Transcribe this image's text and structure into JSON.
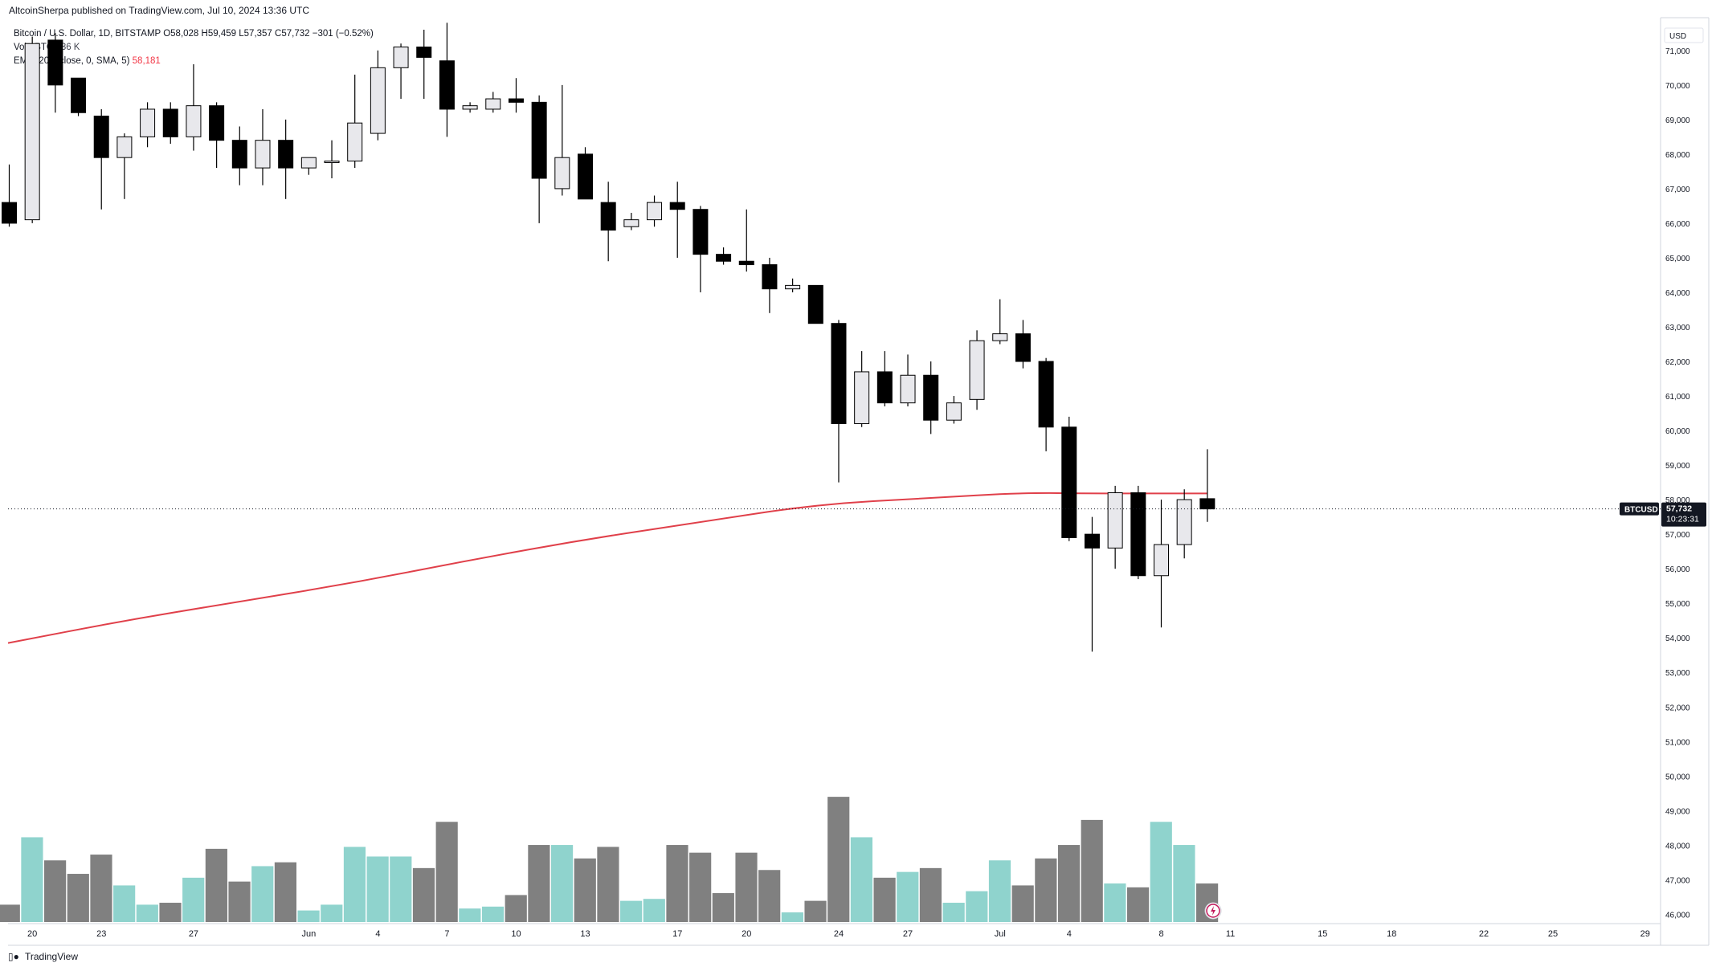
{
  "header": {
    "published": "AltcoinSherpa published on TradingView.com, Jul 10, 2024 13:36 UTC"
  },
  "legend": {
    "symbol_line": "Bitcoin / U.S. Dollar, 1D, BITSTAMP",
    "ohlc": {
      "o_label": "O",
      "o": "58,028",
      "h_label": "H",
      "h": "59,459",
      "l_label": "L",
      "l": "57,357",
      "c_label": "C",
      "c": "57,732",
      "change": "−301 (−0.52%)"
    },
    "volume_line": "Vol · BTC",
    "volume_value": "236 K",
    "ema_line": "EMA (200, close, 0, SMA, 5)",
    "ema_value": "58,181"
  },
  "price_scale": {
    "currency": "USD",
    "symbol_tag": "BTCUSD",
    "last_price": "57,732",
    "countdown": "10:23:31"
  },
  "footer": {
    "brand": "TradingView"
  },
  "colors": {
    "up_body": "#e8e8ec",
    "down_body": "#000000",
    "wick": "#000000",
    "vol_up": "#8fd3cd",
    "vol_down": "#808080",
    "ema": "#e0404a",
    "grid_axis": "#d1d4dc",
    "tag_bg": "#131722"
  },
  "chart_data": {
    "type": "candlestick",
    "symbol": "BTCUSD",
    "interval": "1D",
    "exchange": "BITSTAMP",
    "ylim": [
      45800,
      71600
    ],
    "y_ticks": [
      46000,
      47000,
      48000,
      49000,
      50000,
      51000,
      52000,
      53000,
      54000,
      55000,
      56000,
      57000,
      58000,
      59000,
      60000,
      61000,
      62000,
      63000,
      64000,
      65000,
      66000,
      67000,
      68000,
      69000,
      70000,
      71000
    ],
    "y_tick_labels": [
      "46,000",
      "47,000",
      "48,000",
      "49,000",
      "50,000",
      "51,000",
      "52,000",
      "53,000",
      "54,000",
      "55,000",
      "56,000",
      "57,000",
      "58,000",
      "59,000",
      "60,000",
      "61,000",
      "62,000",
      "63,000",
      "64,000",
      "65,000",
      "66,000",
      "67,000",
      "68,000",
      "69,000",
      "70,000",
      "71,000"
    ],
    "x_ticks": [
      {
        "label": "20",
        "i": 1
      },
      {
        "label": "23",
        "i": 4
      },
      {
        "label": "27",
        "i": 8
      },
      {
        "label": "Jun",
        "i": 13
      },
      {
        "label": "4",
        "i": 16
      },
      {
        "label": "7",
        "i": 19
      },
      {
        "label": "10",
        "i": 22
      },
      {
        "label": "13",
        "i": 25
      },
      {
        "label": "17",
        "i": 29
      },
      {
        "label": "20",
        "i": 32
      },
      {
        "label": "24",
        "i": 36
      },
      {
        "label": "27",
        "i": 39
      },
      {
        "label": "Jul",
        "i": 43
      },
      {
        "label": "4",
        "i": 46
      },
      {
        "label": "8",
        "i": 50
      },
      {
        "label": "11",
        "i": 53
      },
      {
        "label": "15",
        "i": 57
      },
      {
        "label": "18",
        "i": 60
      },
      {
        "label": "22",
        "i": 64
      },
      {
        "label": "25",
        "i": 67
      },
      {
        "label": "29",
        "i": 71
      }
    ],
    "candles": [
      {
        "o": 66600,
        "h": 67700,
        "l": 65900,
        "c": 66000
      },
      {
        "o": 66100,
        "h": 71400,
        "l": 66000,
        "c": 71200
      },
      {
        "o": 71300,
        "h": 71500,
        "l": 69200,
        "c": 70000
      },
      {
        "o": 70200,
        "h": 70200,
        "l": 69100,
        "c": 69200
      },
      {
        "o": 69100,
        "h": 69300,
        "l": 66400,
        "c": 67900
      },
      {
        "o": 67900,
        "h": 68600,
        "l": 66700,
        "c": 68500
      },
      {
        "o": 68500,
        "h": 69500,
        "l": 68200,
        "c": 69300
      },
      {
        "o": 69300,
        "h": 69500,
        "l": 68300,
        "c": 68500
      },
      {
        "o": 68500,
        "h": 70600,
        "l": 68100,
        "c": 69400
      },
      {
        "o": 69400,
        "h": 69500,
        "l": 67600,
        "c": 68400
      },
      {
        "o": 68400,
        "h": 68800,
        "l": 67100,
        "c": 67600
      },
      {
        "o": 67600,
        "h": 69300,
        "l": 67100,
        "c": 68400
      },
      {
        "o": 68400,
        "h": 69000,
        "l": 66700,
        "c": 67600
      },
      {
        "o": 67600,
        "h": 67800,
        "l": 67400,
        "c": 67900
      },
      {
        "o": 67800,
        "h": 68400,
        "l": 67300,
        "c": 67800
      },
      {
        "o": 67800,
        "h": 70300,
        "l": 67600,
        "c": 68900
      },
      {
        "o": 68600,
        "h": 71000,
        "l": 68400,
        "c": 70500
      },
      {
        "o": 70500,
        "h": 71200,
        "l": 69600,
        "c": 71100
      },
      {
        "o": 71100,
        "h": 71600,
        "l": 69600,
        "c": 70800
      },
      {
        "o": 70700,
        "h": 71800,
        "l": 68500,
        "c": 69300
      },
      {
        "o": 69300,
        "h": 69500,
        "l": 69200,
        "c": 69400
      },
      {
        "o": 69300,
        "h": 69800,
        "l": 69200,
        "c": 69600
      },
      {
        "o": 69600,
        "h": 70200,
        "l": 69200,
        "c": 69500
      },
      {
        "o": 69500,
        "h": 69700,
        "l": 66000,
        "c": 67300
      },
      {
        "o": 67000,
        "h": 70000,
        "l": 66800,
        "c": 67900
      },
      {
        "o": 68000,
        "h": 68200,
        "l": 66700,
        "c": 66700
      },
      {
        "o": 66600,
        "h": 67200,
        "l": 64900,
        "c": 65800
      },
      {
        "o": 65900,
        "h": 66300,
        "l": 65800,
        "c": 66100
      },
      {
        "o": 66100,
        "h": 66800,
        "l": 65900,
        "c": 66600
      },
      {
        "o": 66600,
        "h": 67200,
        "l": 65000,
        "c": 66400
      },
      {
        "o": 66400,
        "h": 66500,
        "l": 64000,
        "c": 65100
      },
      {
        "o": 65100,
        "h": 65300,
        "l": 64800,
        "c": 64900
      },
      {
        "o": 64900,
        "h": 66400,
        "l": 64600,
        "c": 64800
      },
      {
        "o": 64800,
        "h": 65000,
        "l": 63400,
        "c": 64100
      },
      {
        "o": 64100,
        "h": 64400,
        "l": 64000,
        "c": 64200
      },
      {
        "o": 64200,
        "h": 64200,
        "l": 63100,
        "c": 63100
      },
      {
        "o": 63100,
        "h": 63200,
        "l": 58500,
        "c": 60200
      },
      {
        "o": 60200,
        "h": 62300,
        "l": 60100,
        "c": 61700
      },
      {
        "o": 61700,
        "h": 62300,
        "l": 60700,
        "c": 60800
      },
      {
        "o": 60800,
        "h": 62200,
        "l": 60700,
        "c": 61600
      },
      {
        "o": 61600,
        "h": 62000,
        "l": 59900,
        "c": 60300
      },
      {
        "o": 60300,
        "h": 61000,
        "l": 60200,
        "c": 60800
      },
      {
        "o": 60900,
        "h": 62900,
        "l": 60600,
        "c": 62600
      },
      {
        "o": 62600,
        "h": 63800,
        "l": 62500,
        "c": 62800
      },
      {
        "o": 62800,
        "h": 63200,
        "l": 61800,
        "c": 62000
      },
      {
        "o": 62000,
        "h": 62100,
        "l": 59400,
        "c": 60100
      },
      {
        "o": 60100,
        "h": 60400,
        "l": 56800,
        "c": 56900
      },
      {
        "o": 57000,
        "h": 57500,
        "l": 53600,
        "c": 56600
      },
      {
        "o": 56600,
        "h": 58400,
        "l": 56000,
        "c": 58200
      },
      {
        "o": 58200,
        "h": 58400,
        "l": 55700,
        "c": 55800
      },
      {
        "o": 55800,
        "h": 58000,
        "l": 54300,
        "c": 56700
      },
      {
        "o": 56700,
        "h": 58300,
        "l": 56300,
        "c": 58000
      },
      {
        "o": 58028,
        "h": 59459,
        "l": 57357,
        "c": 57732
      }
    ],
    "volume_ylim": [
      0,
      11800
    ],
    "volume": [
      900,
      4400,
      3200,
      2500,
      3500,
      1900,
      900,
      1000,
      2300,
      3800,
      2100,
      2900,
      3100,
      600,
      900,
      3900,
      3400,
      3400,
      2800,
      5200,
      700,
      800,
      1400,
      4000,
      4000,
      3300,
      3900,
      1100,
      1200,
      4000,
      3600,
      1500,
      3600,
      2700,
      500,
      1100,
      6500,
      4400,
      2300,
      2600,
      2800,
      1000,
      1600,
      3200,
      1900,
      3300,
      4000,
      5300,
      2000,
      1800,
      5200,
      4000,
      2000
    ],
    "ema_200": [
      {
        "i": -0.7,
        "v": 53850
      },
      {
        "i": 5,
        "v": 54500
      },
      {
        "i": 10,
        "v": 55050
      },
      {
        "i": 15,
        "v": 55600
      },
      {
        "i": 20,
        "v": 56250
      },
      {
        "i": 25,
        "v": 56850
      },
      {
        "i": 30,
        "v": 57350
      },
      {
        "i": 35,
        "v": 57860
      },
      {
        "i": 40,
        "v": 58050
      },
      {
        "i": 44,
        "v": 58200
      },
      {
        "i": 47,
        "v": 58180
      },
      {
        "i": 52,
        "v": 58181
      }
    ],
    "last_price": 57732
  }
}
